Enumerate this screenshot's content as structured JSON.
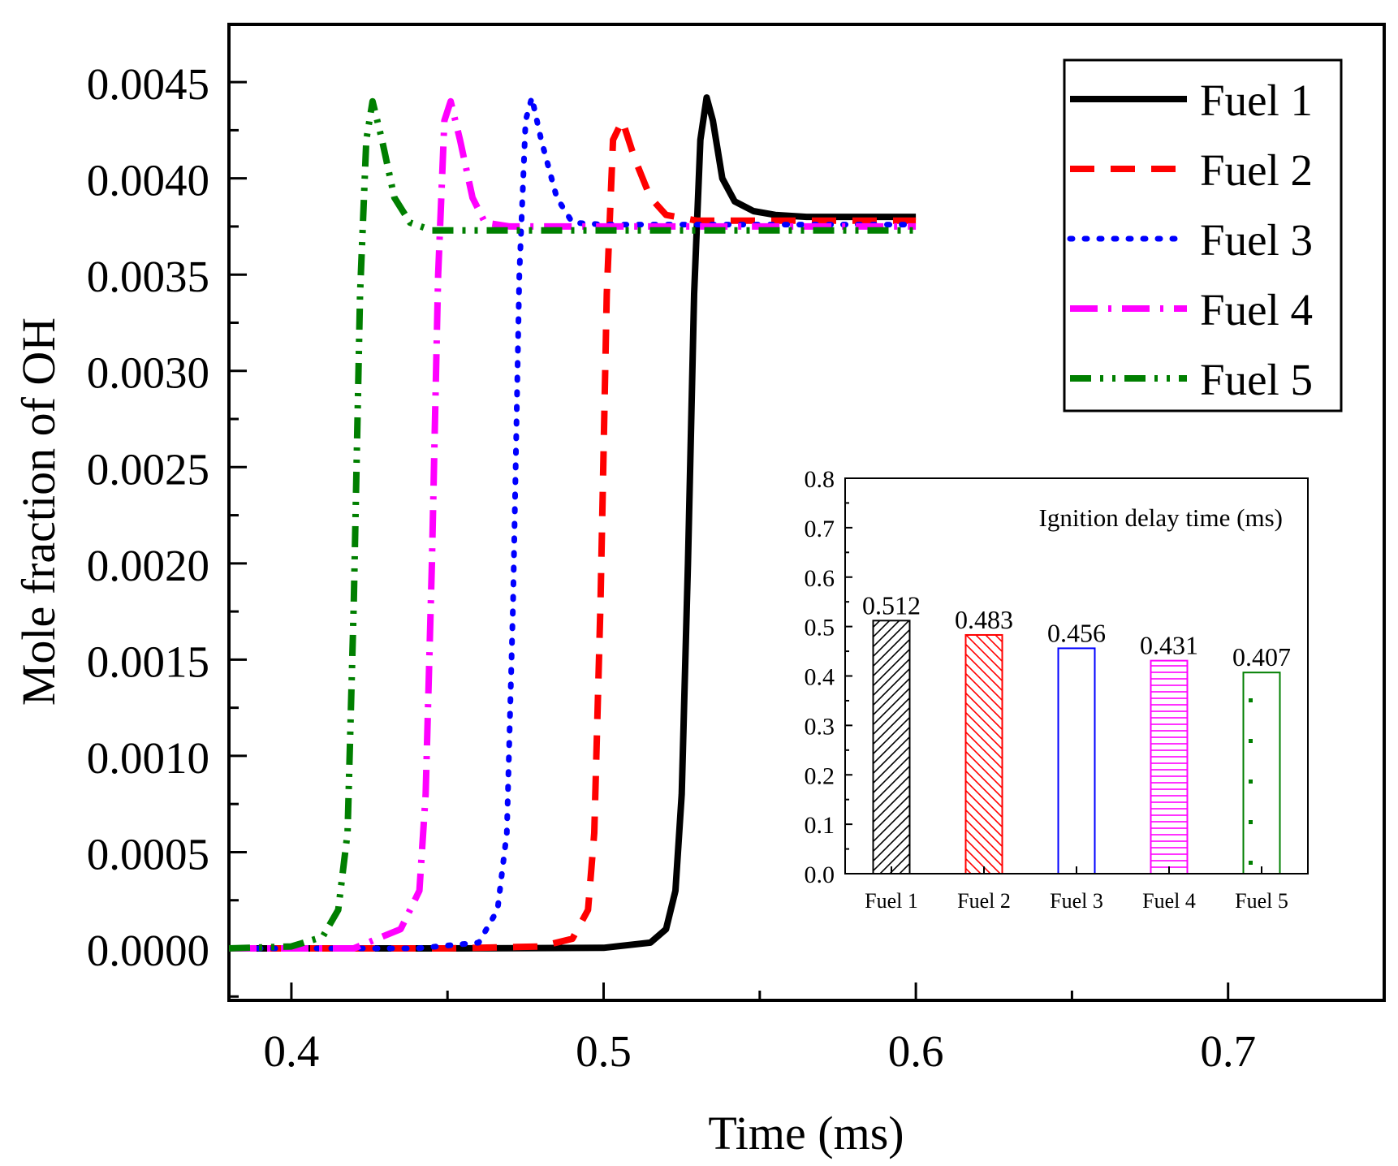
{
  "chart_data": [
    {
      "type": "line",
      "title": "",
      "xlabel": "Time (ms)",
      "ylabel": "Mole fraction of OH",
      "xlim": [
        0.38,
        0.75
      ],
      "ylim": [
        -0.00027,
        0.0048
      ],
      "xticks": [
        0.4,
        0.5,
        0.6,
        0.7
      ],
      "xtick_labels": [
        "0.4",
        "0.5",
        "0.6",
        "0.7"
      ],
      "yticks": [
        0.0,
        0.0005,
        0.001,
        0.0015,
        0.002,
        0.0025,
        0.003,
        0.0035,
        0.004,
        0.0045
      ],
      "ytick_labels": [
        "0.0000",
        "0.0005",
        "0.0010",
        "0.0015",
        "0.0020",
        "0.0025",
        "0.0030",
        "0.0035",
        "0.0040",
        "0.0045"
      ],
      "legend_position": "top-right",
      "series": [
        {
          "name": "Fuel 1",
          "color": "#000000",
          "style": "solid",
          "x": [
            0.38,
            0.45,
            0.5,
            0.515,
            0.52,
            0.523,
            0.525,
            0.527,
            0.529,
            0.531,
            0.533,
            0.535,
            0.538,
            0.542,
            0.548,
            0.555,
            0.565,
            0.58,
            0.6
          ],
          "y": [
            0.0,
            0.0,
            3e-06,
            3e-05,
            0.0001,
            0.0003,
            0.0008,
            0.002,
            0.0034,
            0.0042,
            0.00442,
            0.0043,
            0.004,
            0.00388,
            0.00383,
            0.00381,
            0.0038,
            0.0038,
            0.0038
          ]
        },
        {
          "name": "Fuel 2",
          "color": "#ff0000",
          "style": "dash",
          "x": [
            0.38,
            0.45,
            0.48,
            0.49,
            0.495,
            0.497,
            0.499,
            0.501,
            0.503,
            0.506,
            0.51,
            0.515,
            0.52,
            0.53,
            0.6
          ],
          "y": [
            0.0,
            0.0,
            1e-05,
            5e-05,
            0.0002,
            0.0006,
            0.0018,
            0.0034,
            0.0042,
            0.0043,
            0.0041,
            0.0039,
            0.00381,
            0.00378,
            0.00378
          ]
        },
        {
          "name": "Fuel 3",
          "color": "#0000ff",
          "style": "dot",
          "x": [
            0.38,
            0.44,
            0.46,
            0.466,
            0.469,
            0.471,
            0.473,
            0.475,
            0.477,
            0.48,
            0.485,
            0.49,
            0.5,
            0.6
          ],
          "y": [
            0.0,
            0.0,
            3e-05,
            0.0002,
            0.0006,
            0.0018,
            0.0035,
            0.0043,
            0.00442,
            0.0042,
            0.0039,
            0.00377,
            0.00376,
            0.00376
          ]
        },
        {
          "name": "Fuel 4",
          "color": "#ff00ff",
          "style": "dashdot",
          "x": [
            0.38,
            0.42,
            0.435,
            0.441,
            0.443,
            0.445,
            0.447,
            0.449,
            0.451,
            0.454,
            0.458,
            0.462,
            0.47,
            0.6
          ],
          "y": [
            0.0,
            0.0,
            0.0001,
            0.0003,
            0.0008,
            0.002,
            0.0035,
            0.0043,
            0.0044,
            0.0042,
            0.0039,
            0.00377,
            0.00375,
            0.00375
          ]
        },
        {
          "name": "Fuel 5",
          "color": "#007f00",
          "style": "dashdotdot",
          "x": [
            0.38,
            0.4,
            0.41,
            0.415,
            0.418,
            0.42,
            0.422,
            0.424,
            0.426,
            0.429,
            0.433,
            0.438,
            0.445,
            0.6
          ],
          "y": [
            0.0,
            1e-05,
            6e-05,
            0.0002,
            0.0006,
            0.0018,
            0.0034,
            0.0042,
            0.0044,
            0.0042,
            0.0039,
            0.00377,
            0.00373,
            0.00373
          ]
        }
      ]
    },
    {
      "type": "bar",
      "title": "Ignition delay time (ms)",
      "xlabel": "",
      "ylabel": "",
      "ylim": [
        0.0,
        0.8
      ],
      "yticks": [
        0.0,
        0.1,
        0.2,
        0.3,
        0.4,
        0.5,
        0.6,
        0.7,
        0.8
      ],
      "ytick_labels": [
        "0.0",
        "0.1",
        "0.2",
        "0.3",
        "0.4",
        "0.5",
        "0.6",
        "0.7",
        "0.8"
      ],
      "categories": [
        "Fuel 1",
        "Fuel 2",
        "Fuel 3",
        "Fuel 4",
        "Fuel 5"
      ],
      "values": [
        0.512,
        0.483,
        0.456,
        0.431,
        0.407
      ],
      "value_labels": [
        "0.512",
        "0.483",
        "0.456",
        "0.431",
        "0.407"
      ],
      "colors": [
        "#000000",
        "#ff0000",
        "#0000ff",
        "#ff00ff",
        "#007f00"
      ],
      "patterns": [
        "diag-up",
        "diag-down",
        "none",
        "horizontal",
        "dots"
      ]
    }
  ]
}
